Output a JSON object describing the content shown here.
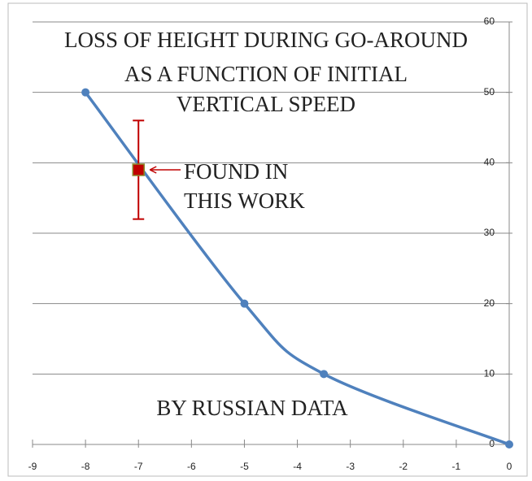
{
  "chart_data": {
    "type": "line",
    "title": [
      "LOSS OF HEIGHT DURING GO-AROUND",
      "AS A FUNCTION OF INITIAL",
      "VERTICAL SPEED"
    ],
    "x": [
      -8,
      -5,
      -3.5,
      0
    ],
    "series": [
      {
        "color": "#4f81bd",
        "values": [
          50,
          20,
          10,
          0
        ]
      }
    ],
    "points": [
      {
        "x": -7,
        "y": 39,
        "error": 7,
        "color": "#c00000"
      }
    ],
    "annotations": [
      {
        "lines": [
          "FOUND IN",
          "THIS WORK"
        ],
        "color": "#c00000"
      },
      {
        "lines": [
          "BY RUSSIAN DATA"
        ],
        "color": "#4f81bd"
      }
    ],
    "xlim": [
      -9,
      0
    ],
    "xticks": [
      -9,
      -8,
      -7,
      -6,
      -5,
      -4,
      -3,
      -2,
      -1,
      0
    ],
    "ylim": [
      0,
      60
    ],
    "yticks": [
      0,
      10,
      20,
      30,
      40,
      50,
      60
    ],
    "grid": true
  }
}
